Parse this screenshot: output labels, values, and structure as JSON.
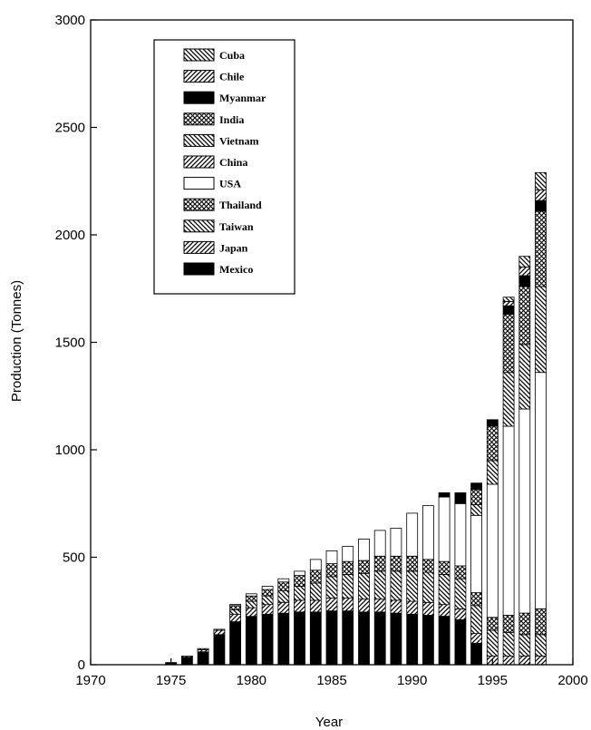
{
  "chart_data": {
    "type": "bar",
    "stacked": true,
    "title": "",
    "xlabel": "Year",
    "ylabel": "Production (Tonnes)",
    "xlim": [
      1970,
      2000
    ],
    "ylim": [
      0,
      3000
    ],
    "xticks": [
      1970,
      1975,
      1980,
      1985,
      1990,
      1995,
      2000
    ],
    "yticks": [
      0,
      500,
      1000,
      1500,
      2000,
      2500,
      3000
    ],
    "grid": false,
    "legend_position": "top-left",
    "x": [
      1975,
      1976,
      1977,
      1978,
      1979,
      1980,
      1981,
      1982,
      1983,
      1984,
      1985,
      1986,
      1987,
      1988,
      1989,
      1990,
      1991,
      1992,
      1993,
      1994,
      1995,
      1996,
      1997,
      1998
    ],
    "series": [
      {
        "name": "Mexico",
        "pattern": "solid",
        "values": [
          10,
          35,
          60,
          140,
          200,
          225,
          235,
          240,
          245,
          245,
          250,
          250,
          245,
          245,
          240,
          235,
          230,
          225,
          210,
          100,
          0,
          0,
          0,
          0
        ]
      },
      {
        "name": "Japan",
        "pattern": "diagfwd",
        "values": [
          0,
          5,
          10,
          20,
          35,
          40,
          45,
          50,
          55,
          55,
          60,
          60,
          60,
          60,
          60,
          60,
          60,
          55,
          50,
          45,
          40,
          40,
          40,
          40
        ]
      },
      {
        "name": "Taiwan",
        "pattern": "diagbwd",
        "values": [
          0,
          0,
          5,
          5,
          20,
          30,
          40,
          55,
          65,
          80,
          100,
          110,
          120,
          130,
          135,
          140,
          140,
          140,
          140,
          130,
          120,
          110,
          100,
          100
        ]
      },
      {
        "name": "Thailand",
        "pattern": "cross",
        "values": [
          0,
          0,
          0,
          0,
          20,
          25,
          30,
          40,
          50,
          60,
          60,
          60,
          60,
          70,
          70,
          70,
          60,
          60,
          60,
          60,
          60,
          80,
          100,
          120
        ]
      },
      {
        "name": "USA",
        "pattern": "empty",
        "values": [
          0,
          0,
          0,
          0,
          5,
          10,
          15,
          15,
          20,
          50,
          60,
          70,
          100,
          120,
          130,
          200,
          250,
          300,
          290,
          360,
          620,
          880,
          950,
          1100
        ]
      },
      {
        "name": "China",
        "pattern": "diagfwd",
        "values": [
          0,
          0,
          0,
          0,
          0,
          0,
          0,
          0,
          0,
          0,
          0,
          0,
          0,
          0,
          0,
          0,
          0,
          0,
          0,
          0,
          0,
          0,
          0,
          0
        ]
      },
      {
        "name": "Vietnam",
        "pattern": "diagbwd",
        "values": [
          0,
          0,
          0,
          0,
          0,
          0,
          0,
          0,
          0,
          0,
          0,
          0,
          0,
          0,
          0,
          0,
          0,
          0,
          0,
          50,
          110,
          250,
          300,
          400
        ]
      },
      {
        "name": "India",
        "pattern": "cross",
        "values": [
          0,
          0,
          0,
          0,
          0,
          0,
          0,
          0,
          0,
          0,
          0,
          0,
          0,
          0,
          0,
          0,
          0,
          0,
          0,
          70,
          160,
          270,
          270,
          350
        ]
      },
      {
        "name": "Myanmar",
        "pattern": "solid",
        "values": [
          0,
          0,
          0,
          0,
          0,
          0,
          0,
          0,
          0,
          0,
          0,
          0,
          0,
          0,
          0,
          0,
          0,
          20,
          50,
          30,
          30,
          40,
          50,
          50
        ]
      },
      {
        "name": "Chile",
        "pattern": "diagfwd",
        "values": [
          0,
          0,
          0,
          0,
          0,
          0,
          0,
          0,
          0,
          0,
          0,
          0,
          0,
          0,
          0,
          0,
          0,
          0,
          0,
          0,
          0,
          20,
          40,
          50
        ]
      },
      {
        "name": "Cuba",
        "pattern": "diagbwd",
        "values": [
          0,
          0,
          0,
          0,
          0,
          0,
          0,
          0,
          0,
          0,
          0,
          0,
          0,
          0,
          0,
          0,
          0,
          0,
          0,
          0,
          0,
          20,
          50,
          80
        ]
      }
    ],
    "legend_order": [
      "Cuba",
      "Chile",
      "Myanmar",
      "India",
      "Vietnam",
      "China",
      "USA",
      "Thailand",
      "Taiwan",
      "Japan",
      "Mexico"
    ],
    "legend_labels": [
      "Cuba",
      "Chile",
      "Myanmar",
      "India",
      "Vietnam",
      "China",
      "USA",
      "Thailand",
      "Taiwan",
      "Japan",
      "Mexico"
    ]
  }
}
